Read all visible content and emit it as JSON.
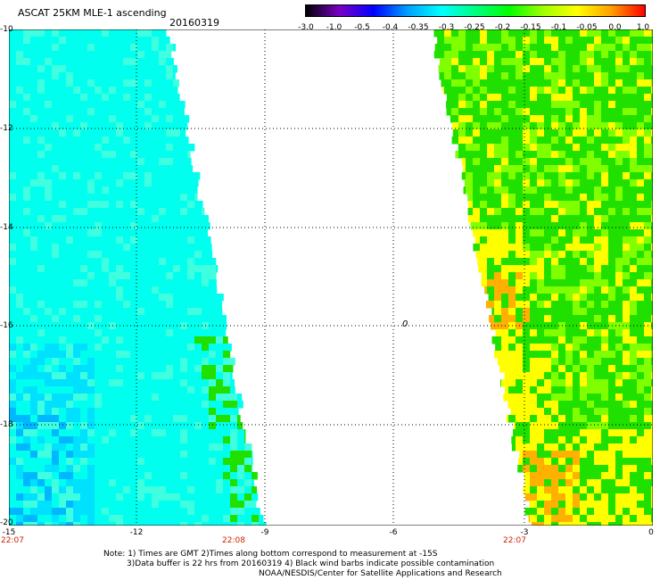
{
  "header": {
    "title": "ASCAT 25KM MLE-1 ascending",
    "date": "20160319"
  },
  "colorbar": {
    "labels": [
      "-3.0",
      "-1.0",
      "-0.5",
      "-0.4",
      "-0.35",
      "-0.3",
      "-0.25",
      "-0.2",
      "-0.15",
      "-0.1",
      "-0.05",
      "0.0",
      "1.0"
    ],
    "colors": [
      "#000000",
      "#7a00c8",
      "#0000ff",
      "#00a0ff",
      "#00ffff",
      "#00ff80",
      "#00ff00",
      "#a0ff00",
      "#ffff00",
      "#ffa000",
      "#ff0000"
    ]
  },
  "map": {
    "lat_labels": [
      "-10",
      "-12",
      "-14",
      "-16",
      "-18",
      "-20"
    ],
    "lon_labels": [
      "-15",
      "-12",
      "-9",
      "-6",
      "-3",
      "0"
    ],
    "time_labels": [
      "22:07",
      "22:08",
      "22:07"
    ],
    "marker_label": "0",
    "colors": {
      "cyan": "#00ffee",
      "cyan_light": "#40ffe0",
      "blue_cyan": "#00e0ff",
      "blue": "#00b8ff",
      "green": "#20e000",
      "green_light": "#80ff00",
      "yellow": "#ffff00",
      "orange": "#ffb000",
      "time_red": "#cc2200"
    }
  },
  "notes": {
    "line1": "Note: 1) Times are GMT 2)Times along bottom correspond to measurement at -15S",
    "line2": "3)Data buffer is 22 hrs from 20160319 4) Black wind barbs indicate possible contamination",
    "line3": "NOAA/NESDIS/Center for Satellite Applications and Research"
  }
}
